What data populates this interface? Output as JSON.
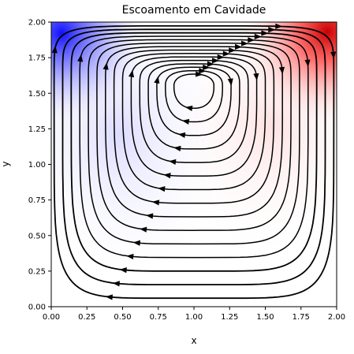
{
  "chart_data": {
    "type": "streamplot",
    "title": "Escoamento em Cavidade",
    "xlabel": "x",
    "ylabel": "y",
    "xlim": [
      0,
      2
    ],
    "ylim": [
      0,
      2
    ],
    "xticks": [
      "0.00",
      "0.25",
      "0.50",
      "0.75",
      "1.00",
      "1.25",
      "1.50",
      "1.75",
      "2.00"
    ],
    "yticks": [
      "0.00",
      "0.25",
      "0.50",
      "0.75",
      "1.00",
      "1.25",
      "1.50",
      "1.75",
      "2.00"
    ],
    "colormap": "bwr",
    "grid": false,
    "vortex_center": [
      1.0,
      1.55
    ],
    "lid_velocity_direction": "right",
    "colors": {
      "positive": "#ff0000",
      "negative": "#0000ff",
      "neutral": "#ffffff",
      "streamline": "#000000"
    }
  }
}
